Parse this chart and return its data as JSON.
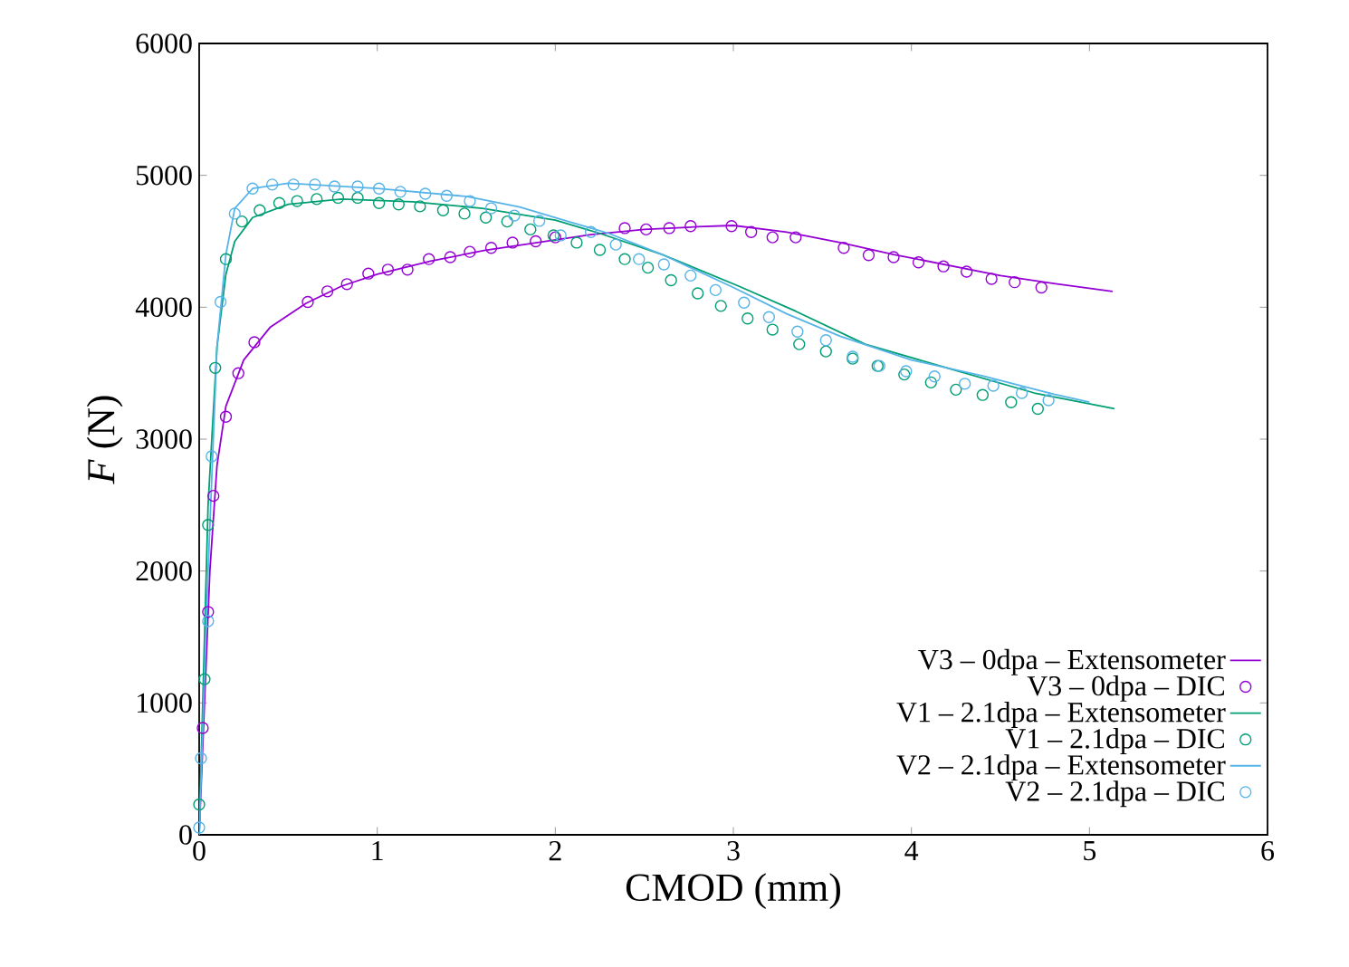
{
  "chart_data": {
    "type": "line",
    "xlabel": "CMOD (mm)",
    "ylabel": "*F* (N)",
    "xlim": [
      0,
      6
    ],
    "ylim": [
      0,
      6000
    ],
    "xticks": [
      0,
      1,
      2,
      3,
      4,
      5,
      6
    ],
    "yticks": [
      0,
      1000,
      2000,
      3000,
      4000,
      5000,
      6000
    ],
    "legend": "bottom right",
    "grid": false,
    "series": [
      {
        "name": "V3 – 0dpa – Extensometer",
        "line_style": "solid",
        "color": "#9400d3",
        "x": [
          0,
          0.03,
          0.06,
          0.1,
          0.15,
          0.25,
          0.4,
          0.6,
          0.8,
          1.0,
          1.3,
          1.6,
          1.9,
          2.2,
          2.5,
          2.8,
          3.0,
          3.3,
          3.6,
          3.9,
          4.2,
          4.5,
          4.8,
          5.13
        ],
        "values": [
          0,
          1000,
          2000,
          2800,
          3250,
          3600,
          3850,
          4030,
          4160,
          4250,
          4350,
          4430,
          4490,
          4550,
          4590,
          4610,
          4620,
          4570,
          4490,
          4400,
          4320,
          4240,
          4180,
          4120
        ]
      },
      {
        "name": "V3 – 0dpa – DIC",
        "type": "scatter",
        "marker": "circle",
        "color": "#9400d3",
        "x": [
          0.02,
          0.05,
          0.08,
          0.15,
          0.22,
          0.31,
          0.61,
          0.72,
          0.83,
          0.95,
          1.06,
          1.17,
          1.29,
          1.41,
          1.52,
          1.64,
          1.76,
          1.89,
          2.0,
          2.39,
          2.51,
          2.64,
          2.76,
          2.99,
          3.1,
          3.22,
          3.35,
          3.62,
          3.76,
          3.9,
          4.04,
          4.18,
          4.31,
          4.45,
          4.58,
          4.73
        ],
        "values": [
          810,
          1690,
          2570,
          3170,
          3500,
          3735,
          4040,
          4120,
          4175,
          4255,
          4285,
          4285,
          4365,
          4380,
          4420,
          4450,
          4490,
          4500,
          4530,
          4600,
          4590,
          4600,
          4615,
          4615,
          4570,
          4530,
          4530,
          4450,
          4395,
          4380,
          4340,
          4310,
          4270,
          4215,
          4190,
          4150
        ]
      },
      {
        "name": "V1 – 2.1dpa – Extensometer",
        "line_style": "solid",
        "color": "#009e73",
        "x": [
          0,
          0.05,
          0.1,
          0.15,
          0.2,
          0.3,
          0.5,
          0.8,
          1.2,
          1.59,
          2.0,
          2.25,
          2.6,
          3.03,
          3.35,
          3.74,
          4.2,
          4.69,
          5.14
        ],
        "values": [
          0,
          2500,
          3700,
          4250,
          4500,
          4680,
          4780,
          4820,
          4800,
          4750,
          4660,
          4560,
          4400,
          4160,
          3970,
          3720,
          3540,
          3350,
          3230
        ]
      },
      {
        "name": "V1 – 2.1dpa – DIC",
        "type": "scatter",
        "marker": "circle",
        "color": "#009e73",
        "x": [
          0.0,
          0.03,
          0.05,
          0.09,
          0.15,
          0.24,
          0.34,
          0.45,
          0.55,
          0.66,
          0.78,
          0.89,
          1.01,
          1.12,
          1.24,
          1.37,
          1.49,
          1.61,
          1.73,
          1.86,
          1.99,
          2.12,
          2.25,
          2.39,
          2.52,
          2.65,
          2.8,
          2.93,
          3.08,
          3.22,
          3.37,
          3.52,
          3.67,
          3.81,
          3.96,
          4.11,
          4.25,
          4.4,
          4.56,
          4.71
        ],
        "values": [
          230,
          1180,
          2350,
          3540,
          4365,
          4650,
          4735,
          4790,
          4805,
          4820,
          4830,
          4830,
          4790,
          4780,
          4765,
          4735,
          4710,
          4680,
          4650,
          4590,
          4545,
          4490,
          4435,
          4365,
          4300,
          4205,
          4105,
          4010,
          3915,
          3830,
          3720,
          3665,
          3610,
          3555,
          3490,
          3430,
          3375,
          3335,
          3280,
          3230
        ]
      },
      {
        "name": "V2 – 2.1dpa – Extensometer",
        "line_style": "solid",
        "color": "#56b4e9",
        "x": [
          0,
          0.05,
          0.1,
          0.15,
          0.2,
          0.3,
          0.5,
          1.0,
          1.5,
          1.8,
          2.0,
          2.3,
          2.6,
          3.0,
          3.3,
          3.6,
          4.0,
          4.4,
          4.8,
          5.0
        ],
        "values": [
          0,
          2000,
          3700,
          4400,
          4750,
          4900,
          4940,
          4900,
          4840,
          4760,
          4680,
          4560,
          4400,
          4150,
          3950,
          3780,
          3600,
          3480,
          3340,
          3280
        ]
      },
      {
        "name": "V2 – 2.1dpa – DIC",
        "type": "scatter",
        "marker": "circle",
        "color": "#56b4e9",
        "x": [
          0.0,
          0.01,
          0.05,
          0.07,
          0.12,
          0.2,
          0.3,
          0.41,
          0.53,
          0.65,
          0.76,
          0.89,
          1.01,
          1.13,
          1.27,
          1.39,
          1.52,
          1.64,
          1.77,
          1.91,
          2.03,
          2.2,
          2.34,
          2.47,
          2.61,
          2.76,
          2.9,
          3.06,
          3.2,
          3.36,
          3.52,
          3.67,
          3.82,
          3.97,
          4.13,
          4.3,
          4.46,
          4.62,
          4.77
        ],
        "values": [
          55,
          580,
          1620,
          2870,
          4040,
          4710,
          4900,
          4930,
          4930,
          4930,
          4915,
          4915,
          4900,
          4875,
          4860,
          4845,
          4805,
          4750,
          4695,
          4655,
          4545,
          4570,
          4475,
          4365,
          4325,
          4240,
          4130,
          4035,
          3925,
          3815,
          3750,
          3625,
          3555,
          3515,
          3475,
          3420,
          3405,
          3350,
          3295
        ]
      }
    ]
  }
}
